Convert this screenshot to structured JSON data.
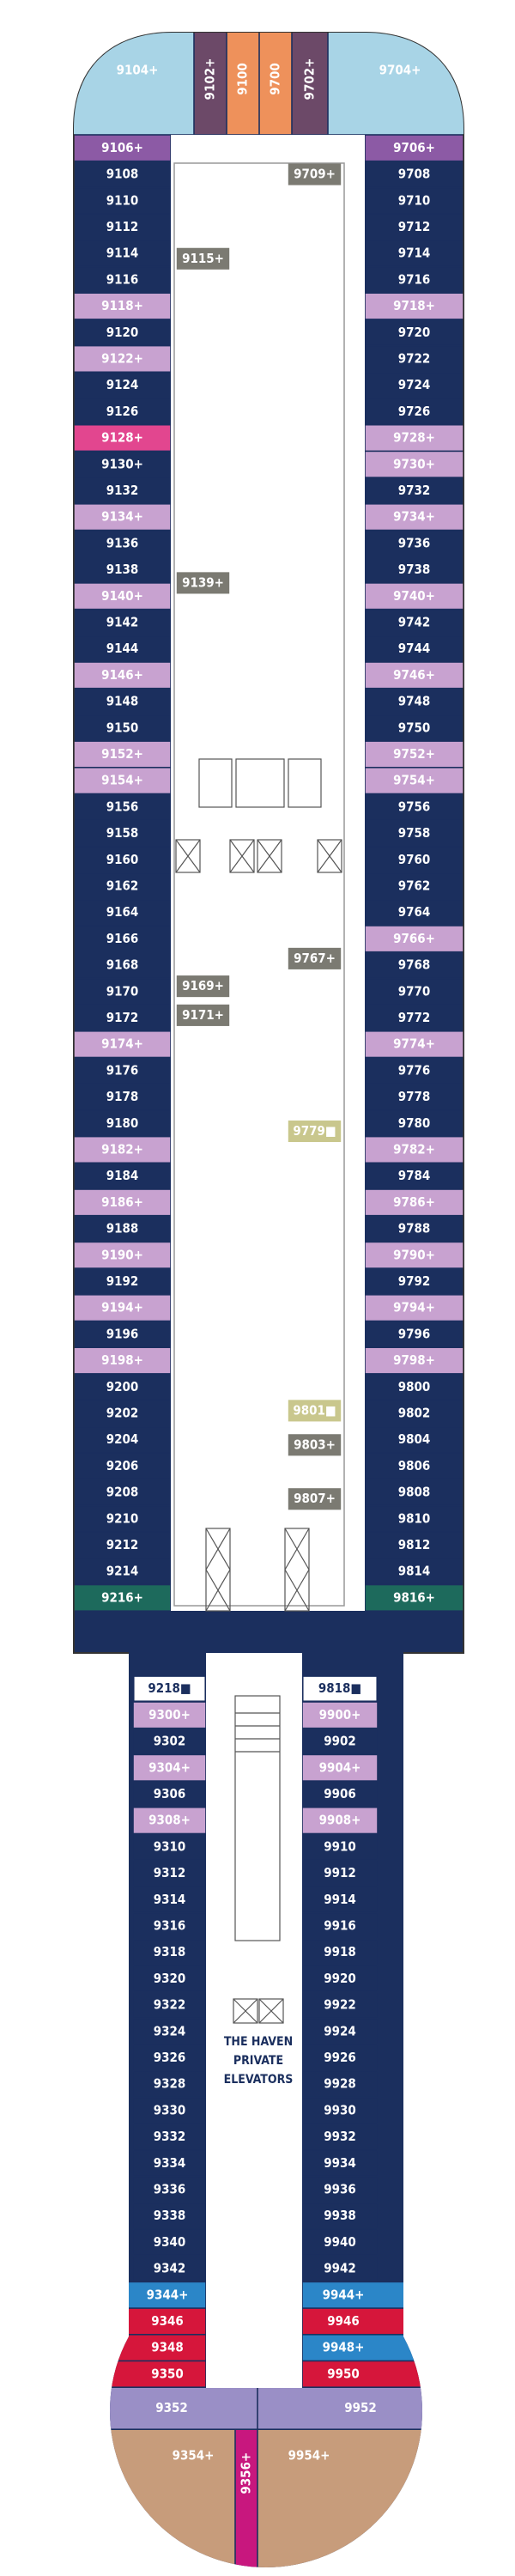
{
  "top": [
    {
      "label": "9104+",
      "fill": "#a8d4e6"
    },
    {
      "label": "9102+",
      "fill": "#6c4968"
    },
    {
      "label": "9100",
      "fill": "#ee915b"
    },
    {
      "label": "9700",
      "fill": "#ee915b"
    },
    {
      "label": "9702+",
      "fill": "#6c4968"
    },
    {
      "label": "9704+",
      "fill": "#a8d4e6"
    }
  ],
  "forward": {
    "port": [
      {
        "label": "9106+",
        "fill": "#8c5aa5"
      },
      {
        "label": "9108",
        "fill": "#1b2f5e"
      },
      {
        "label": "9110",
        "fill": "#1b2f5e"
      },
      {
        "label": "9112",
        "fill": "#1b2f5e"
      },
      {
        "label": "9114",
        "fill": "#1b2f5e"
      },
      {
        "label": "9116",
        "fill": "#1b2f5e"
      },
      {
        "label": "9118+",
        "fill": "#c8a2d0"
      },
      {
        "label": "9120",
        "fill": "#1b2f5e"
      },
      {
        "label": "9122+",
        "fill": "#c8a2d0"
      },
      {
        "label": "9124",
        "fill": "#1b2f5e"
      },
      {
        "label": "9126",
        "fill": "#1b2f5e"
      },
      {
        "label": "9128+",
        "fill": "#e2468f"
      },
      {
        "label": "9130+",
        "fill": "#1b2f5e"
      },
      {
        "label": "9132",
        "fill": "#1b2f5e"
      },
      {
        "label": "9134+",
        "fill": "#c8a2d0"
      },
      {
        "label": "9136",
        "fill": "#1b2f5e"
      },
      {
        "label": "9138",
        "fill": "#1b2f5e"
      },
      {
        "label": "9140+",
        "fill": "#c8a2d0"
      },
      {
        "label": "9142",
        "fill": "#1b2f5e"
      },
      {
        "label": "9144",
        "fill": "#1b2f5e"
      },
      {
        "label": "9146+",
        "fill": "#c8a2d0"
      },
      {
        "label": "9148",
        "fill": "#1b2f5e"
      },
      {
        "label": "9150",
        "fill": "#1b2f5e"
      },
      {
        "label": "9152+",
        "fill": "#c8a2d0"
      },
      {
        "label": "9154+",
        "fill": "#c8a2d0"
      },
      {
        "label": "9156",
        "fill": "#1b2f5e"
      },
      {
        "label": "9158",
        "fill": "#1b2f5e"
      },
      {
        "label": "9160",
        "fill": "#1b2f5e"
      },
      {
        "label": "9162",
        "fill": "#1b2f5e"
      },
      {
        "label": "9164",
        "fill": "#1b2f5e"
      },
      {
        "label": "9166",
        "fill": "#1b2f5e"
      },
      {
        "label": "9168",
        "fill": "#1b2f5e"
      },
      {
        "label": "9170",
        "fill": "#1b2f5e"
      },
      {
        "label": "9172",
        "fill": "#1b2f5e"
      },
      {
        "label": "9174+",
        "fill": "#c8a2d0"
      },
      {
        "label": "9176",
        "fill": "#1b2f5e"
      },
      {
        "label": "9178",
        "fill": "#1b2f5e"
      },
      {
        "label": "9180",
        "fill": "#1b2f5e"
      },
      {
        "label": "9182+",
        "fill": "#c8a2d0"
      },
      {
        "label": "9184",
        "fill": "#1b2f5e"
      },
      {
        "label": "9186+",
        "fill": "#c8a2d0"
      },
      {
        "label": "9188",
        "fill": "#1b2f5e"
      },
      {
        "label": "9190+",
        "fill": "#c8a2d0"
      },
      {
        "label": "9192",
        "fill": "#1b2f5e"
      },
      {
        "label": "9194+",
        "fill": "#c8a2d0"
      },
      {
        "label": "9196",
        "fill": "#1b2f5e"
      },
      {
        "label": "9198+",
        "fill": "#c8a2d0"
      },
      {
        "label": "9200",
        "fill": "#1b2f5e"
      },
      {
        "label": "9202",
        "fill": "#1b2f5e"
      },
      {
        "label": "9204",
        "fill": "#1b2f5e"
      },
      {
        "label": "9206",
        "fill": "#1b2f5e"
      },
      {
        "label": "9208",
        "fill": "#1b2f5e"
      },
      {
        "label": "9210",
        "fill": "#1b2f5e"
      },
      {
        "label": "9212",
        "fill": "#1b2f5e"
      },
      {
        "label": "9214",
        "fill": "#1b2f5e"
      },
      {
        "label": "9216+",
        "fill": "#1d6a5c"
      }
    ],
    "starboard": [
      {
        "label": "9706+",
        "fill": "#8c5aa5"
      },
      {
        "label": "9708",
        "fill": "#1b2f5e"
      },
      {
        "label": "9710",
        "fill": "#1b2f5e"
      },
      {
        "label": "9712",
        "fill": "#1b2f5e"
      },
      {
        "label": "9714",
        "fill": "#1b2f5e"
      },
      {
        "label": "9716",
        "fill": "#1b2f5e"
      },
      {
        "label": "9718+",
        "fill": "#c8a2d0"
      },
      {
        "label": "9720",
        "fill": "#1b2f5e"
      },
      {
        "label": "9722",
        "fill": "#1b2f5e"
      },
      {
        "label": "9724",
        "fill": "#1b2f5e"
      },
      {
        "label": "9726",
        "fill": "#1b2f5e"
      },
      {
        "label": "9728+",
        "fill": "#c8a2d0"
      },
      {
        "label": "9730+",
        "fill": "#c8a2d0"
      },
      {
        "label": "9732",
        "fill": "#1b2f5e"
      },
      {
        "label": "9734+",
        "fill": "#c8a2d0"
      },
      {
        "label": "9736",
        "fill": "#1b2f5e"
      },
      {
        "label": "9738",
        "fill": "#1b2f5e"
      },
      {
        "label": "9740+",
        "fill": "#c8a2d0"
      },
      {
        "label": "9742",
        "fill": "#1b2f5e"
      },
      {
        "label": "9744",
        "fill": "#1b2f5e"
      },
      {
        "label": "9746+",
        "fill": "#c8a2d0"
      },
      {
        "label": "9748",
        "fill": "#1b2f5e"
      },
      {
        "label": "9750",
        "fill": "#1b2f5e"
      },
      {
        "label": "9752+",
        "fill": "#c8a2d0"
      },
      {
        "label": "9754+",
        "fill": "#c8a2d0"
      },
      {
        "label": "9756",
        "fill": "#1b2f5e"
      },
      {
        "label": "9758",
        "fill": "#1b2f5e"
      },
      {
        "label": "9760",
        "fill": "#1b2f5e"
      },
      {
        "label": "9762",
        "fill": "#1b2f5e"
      },
      {
        "label": "9764",
        "fill": "#1b2f5e"
      },
      {
        "label": "9766+",
        "fill": "#c8a2d0"
      },
      {
        "label": "9768",
        "fill": "#1b2f5e"
      },
      {
        "label": "9770",
        "fill": "#1b2f5e"
      },
      {
        "label": "9772",
        "fill": "#1b2f5e"
      },
      {
        "label": "9774+",
        "fill": "#c8a2d0"
      },
      {
        "label": "9776",
        "fill": "#1b2f5e"
      },
      {
        "label": "9778",
        "fill": "#1b2f5e"
      },
      {
        "label": "9780",
        "fill": "#1b2f5e"
      },
      {
        "label": "9782+",
        "fill": "#c8a2d0"
      },
      {
        "label": "9784",
        "fill": "#1b2f5e"
      },
      {
        "label": "9786+",
        "fill": "#c8a2d0"
      },
      {
        "label": "9788",
        "fill": "#1b2f5e"
      },
      {
        "label": "9790+",
        "fill": "#c8a2d0"
      },
      {
        "label": "9792",
        "fill": "#1b2f5e"
      },
      {
        "label": "9794+",
        "fill": "#c8a2d0"
      },
      {
        "label": "9796",
        "fill": "#1b2f5e"
      },
      {
        "label": "9798+",
        "fill": "#c8a2d0"
      },
      {
        "label": "9800",
        "fill": "#1b2f5e"
      },
      {
        "label": "9802",
        "fill": "#1b2f5e"
      },
      {
        "label": "9804",
        "fill": "#1b2f5e"
      },
      {
        "label": "9806",
        "fill": "#1b2f5e"
      },
      {
        "label": "9808",
        "fill": "#1b2f5e"
      },
      {
        "label": "9810",
        "fill": "#1b2f5e"
      },
      {
        "label": "9812",
        "fill": "#1b2f5e"
      },
      {
        "label": "9814",
        "fill": "#1b2f5e"
      },
      {
        "label": "9816+",
        "fill": "#1d6a5c"
      }
    ],
    "center": [
      {
        "label": "9709+",
        "fill": "#7b7a72"
      },
      {
        "label": "9115+",
        "fill": "#7b7a72"
      },
      {
        "label": "9139+",
        "fill": "#7b7a72"
      },
      {
        "label": "9767+",
        "fill": "#7b7a72"
      },
      {
        "label": "9169+",
        "fill": "#7b7a72"
      },
      {
        "label": "9171+",
        "fill": "#7b7a72"
      },
      {
        "label": "9779■",
        "fill": "#c9c78d"
      },
      {
        "label": "9801■",
        "fill": "#c9c78d"
      },
      {
        "label": "9803+",
        "fill": "#7b7a72"
      },
      {
        "label": "9807+",
        "fill": "#7b7a72"
      }
    ]
  },
  "aft": {
    "port": [
      {
        "label": "9218■",
        "fill": "#ffffff"
      },
      {
        "label": "9300+",
        "fill": "#c8a2d0"
      },
      {
        "label": "9302",
        "fill": "#1b2f5e"
      },
      {
        "label": "9304+",
        "fill": "#c8a2d0"
      },
      {
        "label": "9306",
        "fill": "#1b2f5e"
      },
      {
        "label": "9308+",
        "fill": "#c8a2d0"
      },
      {
        "label": "9310",
        "fill": "#1b2f5e"
      },
      {
        "label": "9312",
        "fill": "#1b2f5e"
      },
      {
        "label": "9314",
        "fill": "#1b2f5e"
      },
      {
        "label": "9316",
        "fill": "#1b2f5e"
      },
      {
        "label": "9318",
        "fill": "#1b2f5e"
      },
      {
        "label": "9320",
        "fill": "#1b2f5e"
      },
      {
        "label": "9322",
        "fill": "#1b2f5e"
      },
      {
        "label": "9324",
        "fill": "#1b2f5e"
      },
      {
        "label": "9326",
        "fill": "#1b2f5e"
      },
      {
        "label": "9328",
        "fill": "#1b2f5e"
      },
      {
        "label": "9330",
        "fill": "#1b2f5e"
      },
      {
        "label": "9332",
        "fill": "#1b2f5e"
      },
      {
        "label": "9334",
        "fill": "#1b2f5e"
      },
      {
        "label": "9336",
        "fill": "#1b2f5e"
      },
      {
        "label": "9338",
        "fill": "#1b2f5e"
      },
      {
        "label": "9340",
        "fill": "#1b2f5e"
      },
      {
        "label": "9342",
        "fill": "#1b2f5e"
      }
    ],
    "starboard": [
      {
        "label": "9818■",
        "fill": "#ffffff"
      },
      {
        "label": "9900+",
        "fill": "#c8a2d0"
      },
      {
        "label": "9902",
        "fill": "#1b2f5e"
      },
      {
        "label": "9904+",
        "fill": "#c8a2d0"
      },
      {
        "label": "9906",
        "fill": "#1b2f5e"
      },
      {
        "label": "9908+",
        "fill": "#c8a2d0"
      },
      {
        "label": "9910",
        "fill": "#1b2f5e"
      },
      {
        "label": "9912",
        "fill": "#1b2f5e"
      },
      {
        "label": "9914",
        "fill": "#1b2f5e"
      },
      {
        "label": "9916",
        "fill": "#1b2f5e"
      },
      {
        "label": "9918",
        "fill": "#1b2f5e"
      },
      {
        "label": "9920",
        "fill": "#1b2f5e"
      },
      {
        "label": "9922",
        "fill": "#1b2f5e"
      },
      {
        "label": "9924",
        "fill": "#1b2f5e"
      },
      {
        "label": "9926",
        "fill": "#1b2f5e"
      },
      {
        "label": "9928",
        "fill": "#1b2f5e"
      },
      {
        "label": "9930",
        "fill": "#1b2f5e"
      },
      {
        "label": "9932",
        "fill": "#1b2f5e"
      },
      {
        "label": "9934",
        "fill": "#1b2f5e"
      },
      {
        "label": "9936",
        "fill": "#1b2f5e"
      },
      {
        "label": "9938",
        "fill": "#1b2f5e"
      },
      {
        "label": "9940",
        "fill": "#1b2f5e"
      },
      {
        "label": "9942",
        "fill": "#1b2f5e"
      }
    ],
    "elevators": [
      "THE HAVEN",
      "PRIVATE",
      "ELEVATORS"
    ]
  },
  "stern": {
    "port": [
      {
        "label": "9344+",
        "fill": "#2b86c8"
      },
      {
        "label": "9346",
        "fill": "#d6163b"
      },
      {
        "label": "9348",
        "fill": "#d6163b"
      },
      {
        "label": "9350",
        "fill": "#d6163b"
      },
      {
        "label": "9352",
        "fill": "#9a8fc6"
      },
      {
        "label": "9354+",
        "fill": "#c79c7b"
      }
    ],
    "starboard": [
      {
        "label": "9944+",
        "fill": "#2b86c8"
      },
      {
        "label": "9946",
        "fill": "#d6163b"
      },
      {
        "label": "9948+",
        "fill": "#2b86c8"
      },
      {
        "label": "9950",
        "fill": "#d6163b"
      },
      {
        "label": "9952",
        "fill": "#9a8fc6"
      },
      {
        "label": "9954+",
        "fill": "#c79c7b"
      }
    ],
    "center": [
      {
        "label": "9356+",
        "fill": "#c8177e"
      }
    ]
  }
}
